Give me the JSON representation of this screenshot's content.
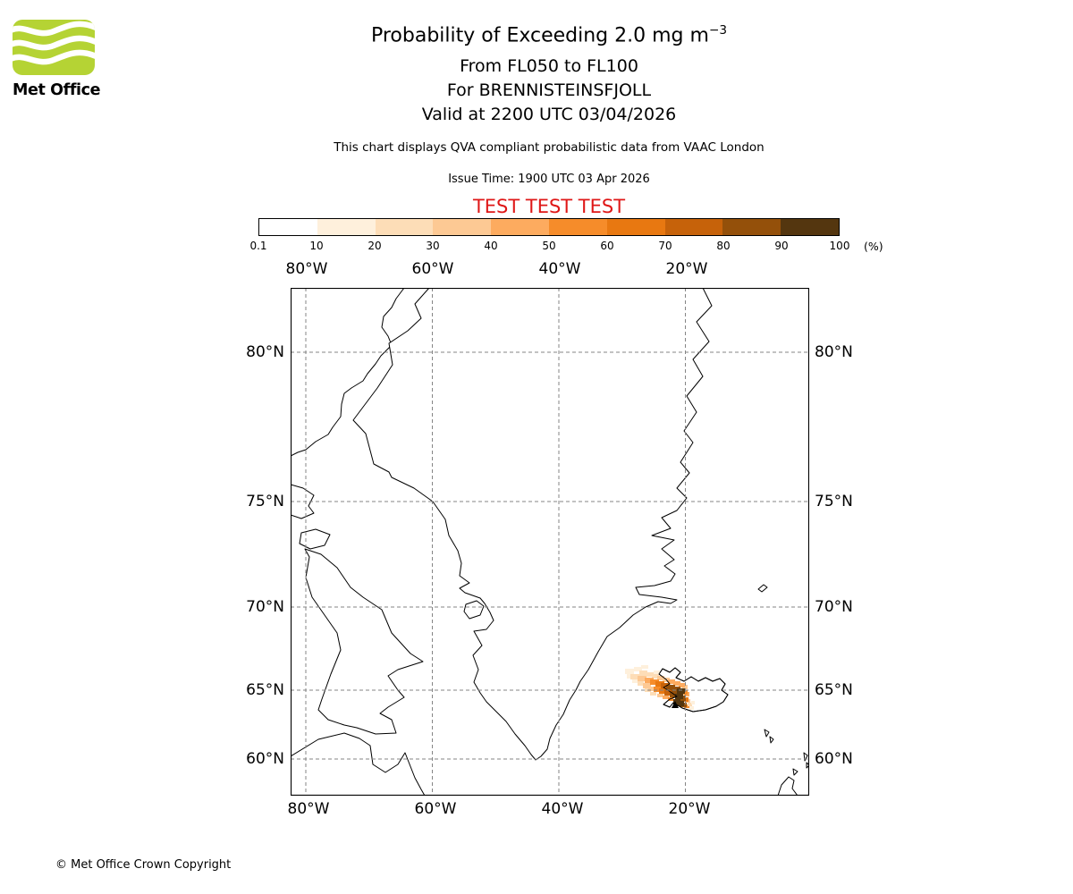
{
  "logo": {
    "brand": "Met Office",
    "green": "#b5d334"
  },
  "header": {
    "title": "Probability of Exceeding 2.0 mg m",
    "title_sup": "−3",
    "line2": "From FL050 to FL100",
    "line3": "For BRENNISTEINSFJOLL",
    "line4": "Valid at 2200 UTC 03/04/2026",
    "note": "This chart displays QVA compliant probabilistic data from VAAC London",
    "issue": "Issue Time: 1900 UTC 03 Apr 2026",
    "test": "TEST TEST TEST",
    "test_color": "#df1717"
  },
  "colorbar": {
    "unit": "(%)",
    "ticks": [
      "0.1",
      "10",
      "20",
      "30",
      "40",
      "50",
      "60",
      "70",
      "80",
      "90",
      "100"
    ],
    "colors": [
      "#ffffff",
      "#fef0dc",
      "#fdddb7",
      "#fdc994",
      "#fdab5f",
      "#f68c2a",
      "#e87811",
      "#c6620a",
      "#94500a",
      "#54360f"
    ]
  },
  "map": {
    "axes": {
      "top": [
        "80°W",
        "60°W",
        "40°W",
        "20°W"
      ],
      "bottom": [
        "80°W",
        "60°W",
        "40°W",
        "20°W"
      ],
      "left": [
        "80°N",
        "75°N",
        "70°N",
        "65°N",
        "60°N"
      ],
      "right": [
        "80°N",
        "75°N",
        "70°N",
        "65°N",
        "60°N"
      ]
    },
    "plume_cells": [
      [
        374,
        426,
        10,
        6,
        1
      ],
      [
        384,
        424,
        9,
        5,
        1
      ],
      [
        392,
        422,
        8,
        4,
        1
      ],
      [
        406,
        428,
        7,
        4,
        1
      ],
      [
        376,
        432,
        8,
        5,
        1
      ],
      [
        382,
        438,
        7,
        4,
        1
      ],
      [
        380,
        432,
        10,
        6,
        2
      ],
      [
        390,
        428,
        9,
        6,
        2
      ],
      [
        398,
        430,
        8,
        5,
        2
      ],
      [
        404,
        432,
        8,
        5,
        2
      ],
      [
        388,
        440,
        7,
        5,
        2
      ],
      [
        396,
        448,
        7,
        4,
        2
      ],
      [
        402,
        452,
        7,
        4,
        2
      ],
      [
        388,
        434,
        10,
        6,
        3
      ],
      [
        394,
        442,
        9,
        6,
        3
      ],
      [
        400,
        446,
        8,
        5,
        3
      ],
      [
        410,
        434,
        8,
        5,
        3
      ],
      [
        416,
        436,
        8,
        5,
        3
      ],
      [
        410,
        454,
        7,
        4,
        3
      ],
      [
        438,
        444,
        6,
        5,
        3
      ],
      [
        442,
        460,
        5,
        4,
        3
      ],
      [
        396,
        436,
        10,
        6,
        4
      ],
      [
        422,
        438,
        8,
        5,
        4
      ],
      [
        428,
        440,
        8,
        5,
        4
      ],
      [
        434,
        442,
        7,
        5,
        4
      ],
      [
        416,
        456,
        7,
        4,
        4
      ],
      [
        440,
        452,
        6,
        5,
        4
      ],
      [
        402,
        438,
        10,
        6,
        5
      ],
      [
        406,
        446,
        9,
        6,
        5
      ],
      [
        436,
        450,
        8,
        5,
        5
      ],
      [
        422,
        458,
        6,
        4,
        5
      ],
      [
        440,
        466,
        6,
        4,
        5
      ],
      [
        408,
        440,
        10,
        6,
        6
      ],
      [
        412,
        448,
        9,
        6,
        6
      ],
      [
        438,
        458,
        7,
        5,
        6
      ],
      [
        414,
        442,
        10,
        6,
        7
      ],
      [
        418,
        450,
        9,
        6,
        7
      ],
      [
        420,
        444,
        10,
        6,
        8
      ],
      [
        426,
        446,
        10,
        6,
        8
      ],
      [
        424,
        452,
        9,
        6,
        8
      ],
      [
        434,
        456,
        8,
        6,
        8
      ],
      [
        436,
        464,
        7,
        5,
        8
      ],
      [
        432,
        448,
        9,
        6,
        9
      ],
      [
        430,
        454,
        9,
        6,
        9
      ],
      [
        428,
        460,
        8,
        6,
        9
      ],
      [
        432,
        462,
        8,
        6,
        9
      ],
      [
        444,
        464,
        5,
        4,
        2
      ],
      [
        446,
        468,
        5,
        4,
        1
      ],
      [
        448,
        462,
        4,
        4,
        1
      ]
    ]
  },
  "chart_data": {
    "type": "heatmap",
    "title": "Probability of Exceeding 2.0 mg m⁻³",
    "subtitle": [
      "From FL050 to FL100",
      "For BRENNISTEINSFJOLL",
      "Valid at 2200 UTC 03/04/2026"
    ],
    "units": "%",
    "colorbar_ticks": [
      0.1,
      10,
      20,
      30,
      40,
      50,
      60,
      70,
      80,
      90,
      100
    ],
    "x_ticks": [
      "80°W",
      "60°W",
      "40°W",
      "20°W"
    ],
    "y_ticks": [
      "80°N",
      "75°N",
      "70°N",
      "65°N",
      "60°N"
    ],
    "max_band": "90–100% plume core just west of Iceland near 65°N 22°W, streak extends WNW to about 27°W"
  },
  "footer": {
    "copyright": "© Met Office Crown Copyright"
  }
}
